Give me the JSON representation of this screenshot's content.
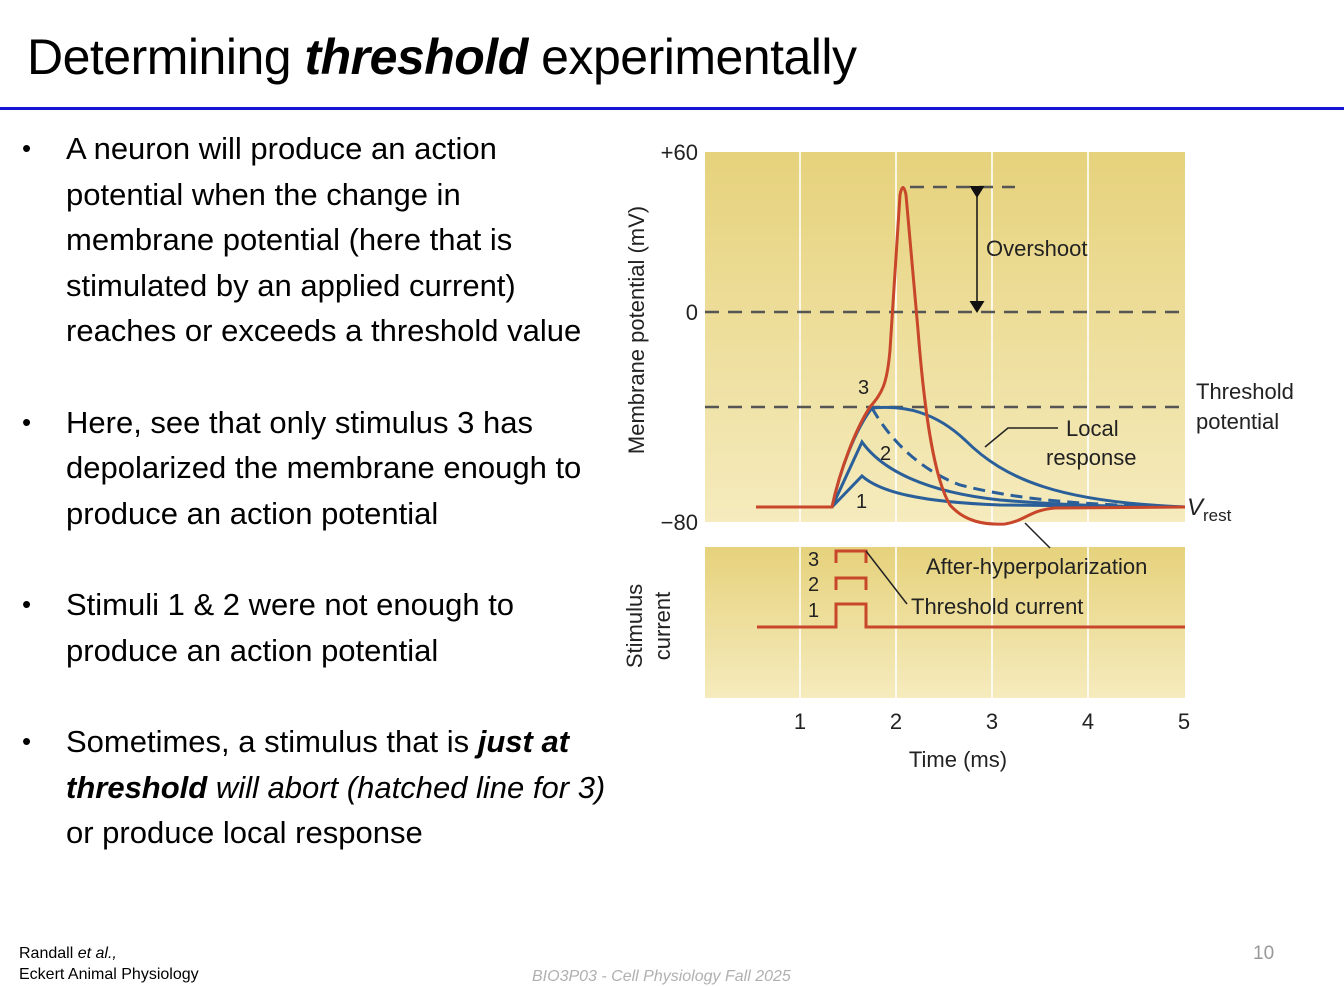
{
  "title": {
    "prefix": "Determining ",
    "emphasis": "threshold",
    "suffix": " experimentally"
  },
  "bullets": [
    {
      "text": "A neuron will produce an action potential when the change in membrane potential (here that is stimulated by an applied current) reaches or exceeds a threshold value"
    },
    {
      "text": "Here, see that only stimulus 3 has depolarized the membrane enough to produce an action potential"
    },
    {
      "text": "Stimuli 1 & 2 were not enough to produce an action potential"
    },
    {
      "part1": "Sometimes, a stimulus that is ",
      "part2": "just at threshold",
      "part3": " will abort (hatched line for 3)",
      "part4": " or produce local response"
    }
  ],
  "footer": {
    "citation_author": "Randall ",
    "citation_etal": "et al.,",
    "citation_book": "Eckert Animal Physiology",
    "course": "BIO3P03 - Cell Physiology Fall 2025",
    "page_number": "10"
  },
  "figure": {
    "y_label_top": "Membrane potential (mV)",
    "y_label_bottom_1": "Stimulus",
    "y_label_bottom_2": "current",
    "y_ticks": [
      "+60",
      "0",
      "−80"
    ],
    "x_ticks": [
      "1",
      "2",
      "3",
      "4",
      "5"
    ],
    "x_label": "Time (ms)",
    "labels": {
      "overshoot": "Overshoot",
      "threshold_potential_1": "Threshold",
      "threshold_potential_2": "potential",
      "local_1": "Local",
      "local_2": "response",
      "vrest_v": "V",
      "vrest_sub": "rest",
      "after_hyper": "After-hyperpolarization",
      "threshold_current": "Threshold current",
      "curve_1": "1",
      "curve_2": "2",
      "curve_3": "3",
      "stim_1": "1",
      "stim_2": "2",
      "stim_3": "3"
    },
    "colors": {
      "panel": "#ecd98a",
      "action_potential": "#c8462a",
      "local_response": "#2a5f9a"
    }
  }
}
